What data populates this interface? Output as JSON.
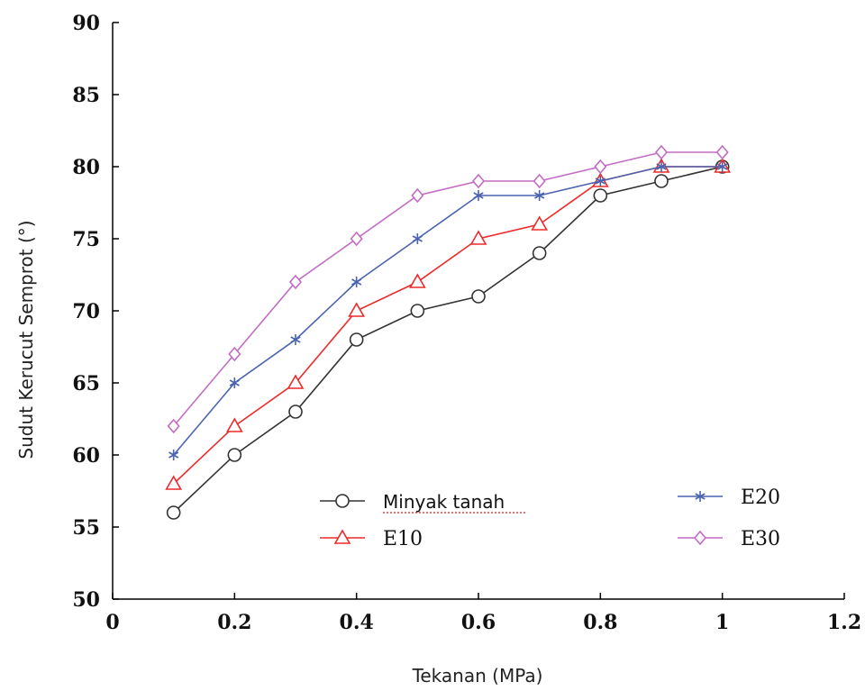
{
  "chart_data": {
    "type": "line",
    "title": "",
    "xlabel": "Tekanan (MPa)",
    "ylabel": "Sudut Kerucut Semprot (°)",
    "xlim": [
      0,
      1.2
    ],
    "ylim": [
      50,
      90
    ],
    "xticks": [
      0,
      0.2,
      0.4,
      0.6,
      0.8,
      1,
      1.2
    ],
    "xtick_labels": [
      "0",
      "0.2",
      "0.4",
      "0.6",
      "0.8",
      "1",
      "1.2"
    ],
    "yticks": [
      50,
      55,
      60,
      65,
      70,
      75,
      80,
      85,
      90
    ],
    "ytick_labels": [
      "50",
      "55",
      "60",
      "65",
      "70",
      "75",
      "80",
      "85",
      "90"
    ],
    "grid": false,
    "legend_position": "bottom-center",
    "x": [
      0.1,
      0.2,
      0.3,
      0.4,
      0.5,
      0.6,
      0.7,
      0.8,
      0.9,
      1.0
    ],
    "series": [
      {
        "name": "Minyak tanah",
        "marker": "circle",
        "color": "#333333",
        "values": [
          56,
          60,
          63,
          68,
          70,
          71,
          74,
          78,
          79,
          80
        ]
      },
      {
        "name": "E10",
        "marker": "triangle",
        "color": "#ee2a2a",
        "values": [
          58,
          62,
          65,
          70,
          72,
          75,
          76,
          79,
          80,
          80
        ]
      },
      {
        "name": "E20",
        "marker": "asterisk",
        "color": "#4a63b0",
        "values": [
          60,
          65,
          68,
          72,
          75,
          78,
          78,
          79,
          80,
          80
        ]
      },
      {
        "name": "E30",
        "marker": "diamond",
        "color": "#c36cc3",
        "values": [
          62,
          67,
          72,
          75,
          78,
          79,
          79,
          80,
          81,
          81
        ]
      }
    ]
  }
}
